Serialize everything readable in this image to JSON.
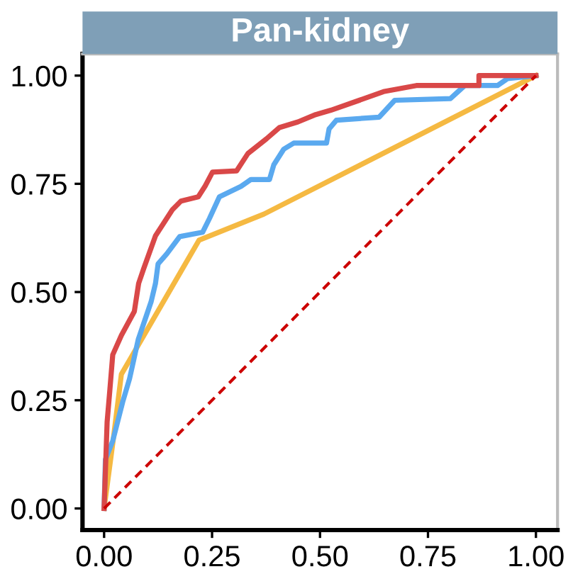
{
  "chart_data": {
    "type": "line",
    "title": "Pan-kidney",
    "xlim": [
      -0.05,
      1.05
    ],
    "ylim": [
      -0.05,
      1.05
    ],
    "xticks": [
      {
        "value": 0,
        "label": "0.00"
      },
      {
        "value": 0.25,
        "label": "0.25"
      },
      {
        "value": 0.5,
        "label": "0.50"
      },
      {
        "value": 0.75,
        "label": "0.75"
      },
      {
        "value": 1,
        "label": "1.00"
      }
    ],
    "yticks": [
      {
        "value": 0,
        "label": "0.00"
      },
      {
        "value": 0.25,
        "label": "0.25"
      },
      {
        "value": 0.5,
        "label": "0.50"
      },
      {
        "value": 0.75,
        "label": "0.75"
      },
      {
        "value": 1,
        "label": "1.00"
      }
    ],
    "grid": false,
    "marker": "none",
    "series": [
      {
        "color": "#f5b942",
        "x": [
          0,
          0.02,
          0.04,
          0.22,
          0.37,
          1
        ],
        "values": [
          0,
          0.15,
          0.31,
          0.62,
          0.68,
          1
        ]
      },
      {
        "color": "#5aa9ef",
        "x": [
          0,
          0.003,
          0.02,
          0.043,
          0.059,
          0.079,
          0.109,
          0.119,
          0.125,
          0.145,
          0.175,
          0.228,
          0.244,
          0.267,
          0.317,
          0.34,
          0.383,
          0.393,
          0.416,
          0.439,
          0.515,
          0.521,
          0.538,
          0.637,
          0.673,
          0.802,
          0.835,
          0.911,
          0.934,
          1
        ],
        "values": [
          0,
          0.113,
          0.156,
          0.246,
          0.3,
          0.39,
          0.478,
          0.52,
          0.565,
          0.588,
          0.628,
          0.638,
          0.67,
          0.72,
          0.744,
          0.76,
          0.76,
          0.794,
          0.83,
          0.844,
          0.844,
          0.877,
          0.897,
          0.904,
          0.943,
          0.947,
          0.977,
          0.977,
          0.993,
          1
        ]
      },
      {
        "color": "#d94848",
        "x": [
          0,
          0.007,
          0.013,
          0.02,
          0.04,
          0.07,
          0.08,
          0.092,
          0.119,
          0.158,
          0.178,
          0.218,
          0.234,
          0.251,
          0.307,
          0.333,
          0.376,
          0.406,
          0.449,
          0.49,
          0.525,
          0.591,
          0.647,
          0.723,
          0.868,
          0.868,
          1
        ],
        "values": [
          0,
          0.2,
          0.27,
          0.355,
          0.4,
          0.455,
          0.52,
          0.555,
          0.63,
          0.69,
          0.71,
          0.72,
          0.745,
          0.777,
          0.78,
          0.82,
          0.854,
          0.88,
          0.893,
          0.91,
          0.92,
          0.943,
          0.963,
          0.977,
          0.977,
          1.0,
          1
        ]
      },
      {
        "color": "#cc0000",
        "line_style": "dashed",
        "x": [
          0,
          1
        ],
        "values": [
          0,
          1
        ]
      }
    ]
  }
}
